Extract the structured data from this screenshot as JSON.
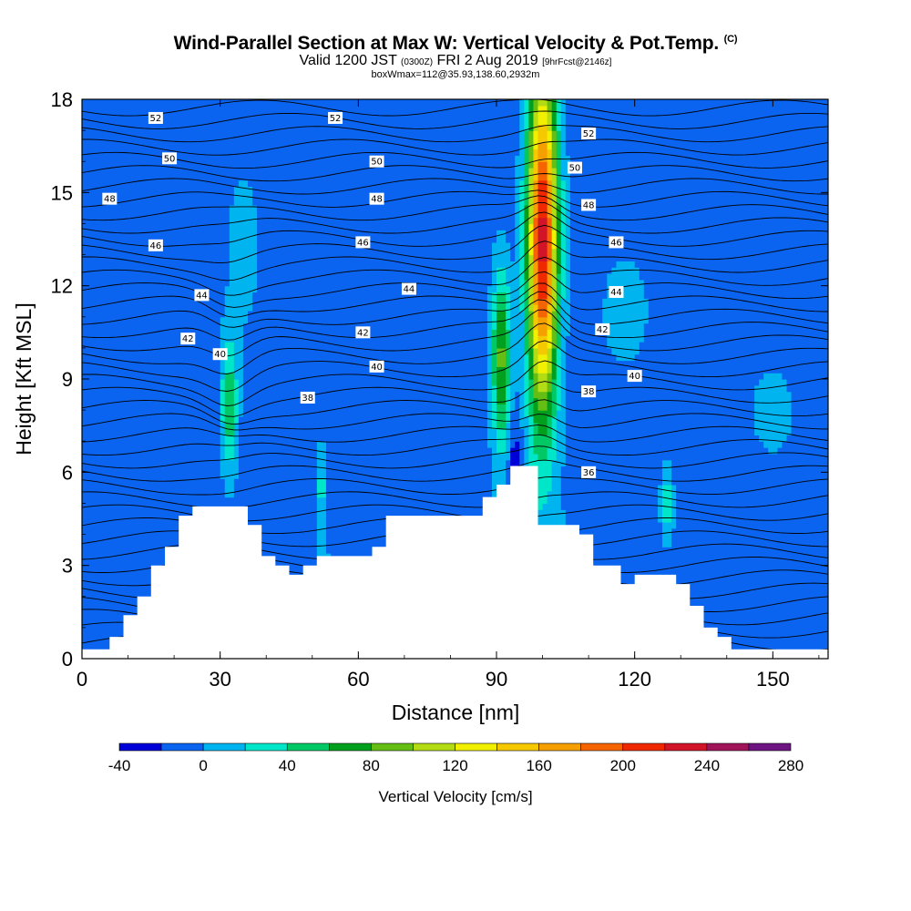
{
  "titles": {
    "main": "Wind-Parallel Section at Max W: Vertical Velocity & Pot.Temp.",
    "copyright": "(C)",
    "valid_prefix": "Valid 1200 JST",
    "valid_utc": "(0300Z)",
    "valid_date": "FRI 2 Aug 2019",
    "forecast": "[9hrFcst@2146z]",
    "box_info": "boxWmax=112@35.93,138.60,2932m"
  },
  "chart_data": {
    "type": "heatmap",
    "title": "Wind-Parallel Section at Max W: Vertical Velocity & Pot.Temp.",
    "xlabel": "Distance [nm]",
    "ylabel": "Height [Kft MSL]",
    "xlim": [
      0,
      162
    ],
    "ylim": [
      0,
      18
    ],
    "x_ticks": [
      0,
      30,
      60,
      90,
      120,
      150
    ],
    "y_ticks": [
      0,
      3,
      6,
      9,
      12,
      15,
      18
    ],
    "colorbar": {
      "label": "Vertical Velocity [cm/s]",
      "tick_values": [
        -40,
        0,
        40,
        80,
        120,
        160,
        200,
        240,
        280
      ],
      "levels": [
        -40,
        -20,
        0,
        20,
        40,
        60,
        80,
        100,
        120,
        140,
        160,
        180,
        200,
        220,
        240,
        260,
        280
      ],
      "colors": [
        "#0000d8",
        "#0a64f0",
        "#00b4f0",
        "#00e6c8",
        "#00c864",
        "#00a01e",
        "#64be14",
        "#b4dc14",
        "#f0f000",
        "#f5c800",
        "#f5a000",
        "#f56400",
        "#f02800",
        "#d21428",
        "#a0145a",
        "#6e1482"
      ]
    },
    "terrain_profile": {
      "x": [
        0,
        6,
        9,
        12,
        15,
        18,
        21,
        24,
        27,
        30,
        33,
        36,
        39,
        42,
        45,
        48,
        51,
        54,
        57,
        60,
        63,
        66,
        69,
        72,
        75,
        78,
        81,
        84,
        87,
        90,
        93,
        96,
        99,
        102,
        105,
        108,
        111,
        114,
        117,
        120,
        123,
        126,
        129,
        132,
        135,
        138,
        141,
        144,
        147,
        150,
        153,
        156,
        159,
        162
      ],
      "height_kft": [
        0.3,
        0.7,
        1.4,
        2.0,
        3.0,
        3.6,
        4.6,
        4.9,
        4.9,
        4.9,
        4.9,
        4.3,
        3.3,
        3.0,
        2.7,
        3.0,
        3.3,
        3.3,
        3.3,
        3.3,
        3.6,
        4.6,
        4.6,
        4.6,
        4.6,
        4.6,
        4.6,
        4.6,
        5.2,
        5.6,
        6.2,
        6.2,
        4.3,
        4.3,
        4.3,
        4.0,
        3.0,
        3.0,
        2.4,
        2.7,
        2.7,
        2.7,
        2.4,
        1.7,
        1.0,
        0.7,
        0.3,
        0.3,
        0.3,
        0.3,
        0.3,
        0.3,
        0.3,
        0.3
      ]
    },
    "w_features": [
      {
        "x": 100,
        "y": 13.5,
        "rx": 3.2,
        "ry": 5.6,
        "peak_cms": 230
      },
      {
        "x": 91,
        "y": 9.7,
        "rx": 2.0,
        "ry": 2.8,
        "peak_cms": 85
      },
      {
        "x": 32,
        "y": 8.2,
        "rx": 1.8,
        "ry": 2.2,
        "peak_cms": 55
      },
      {
        "x": 52,
        "y": 5.5,
        "rx": 1.0,
        "ry": 1.4,
        "peak_cms": 25
      },
      {
        "x": 127,
        "y": 5.0,
        "rx": 1.4,
        "ry": 1.2,
        "peak_cms": 30
      },
      {
        "x": 94,
        "y": 6.4,
        "rx": 1.4,
        "ry": 1.5,
        "peak_cms": -40
      },
      {
        "x": 35,
        "y": 13.2,
        "rx": 4.0,
        "ry": 3.0,
        "peak_cms": 8
      },
      {
        "x": 118,
        "y": 11.2,
        "rx": 6.0,
        "ry": 2.2,
        "peak_cms": 8
      },
      {
        "x": 150,
        "y": 8.0,
        "rx": 6.0,
        "ry": 1.8,
        "peak_cms": 6
      }
    ],
    "theta_contour_labels": [
      {
        "value": "52",
        "x": 16,
        "y": 17.4
      },
      {
        "value": "52",
        "x": 55,
        "y": 17.4
      },
      {
        "value": "52",
        "x": 110,
        "y": 16.9
      },
      {
        "value": "50",
        "x": 19,
        "y": 16.1
      },
      {
        "value": "50",
        "x": 64,
        "y": 16.0
      },
      {
        "value": "50",
        "x": 107,
        "y": 15.8
      },
      {
        "value": "48",
        "x": 6,
        "y": 14.8
      },
      {
        "value": "48",
        "x": 64,
        "y": 14.8
      },
      {
        "value": "48",
        "x": 110,
        "y": 14.6
      },
      {
        "value": "46",
        "x": 16,
        "y": 13.3
      },
      {
        "value": "46",
        "x": 61,
        "y": 13.4
      },
      {
        "value": "46",
        "x": 116,
        "y": 13.4
      },
      {
        "value": "44",
        "x": 26,
        "y": 11.7
      },
      {
        "value": "44",
        "x": 71,
        "y": 11.9
      },
      {
        "value": "44",
        "x": 116,
        "y": 11.8
      },
      {
        "value": "42",
        "x": 23,
        "y": 10.3
      },
      {
        "value": "42",
        "x": 61,
        "y": 10.5
      },
      {
        "value": "42",
        "x": 113,
        "y": 10.6
      },
      {
        "value": "40",
        "x": 30,
        "y": 9.8
      },
      {
        "value": "40",
        "x": 64,
        "y": 9.4
      },
      {
        "value": "40",
        "x": 120,
        "y": 9.1
      },
      {
        "value": "38",
        "x": 49,
        "y": 8.4
      },
      {
        "value": "38",
        "x": 110,
        "y": 8.6
      },
      {
        "value": "36",
        "x": 110,
        "y": 6.0
      }
    ]
  }
}
